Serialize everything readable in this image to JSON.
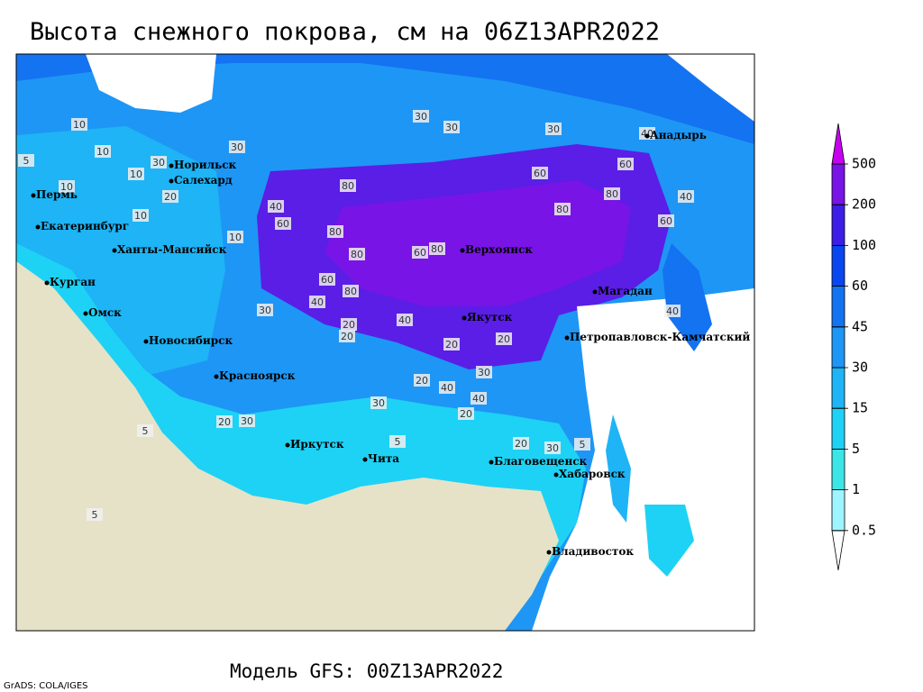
{
  "title": "Высота снежного покрова, см на 06Z13APR2022",
  "footer": "Модель GFS: 00Z13APR2022",
  "credit": "GrADS: COLA/IGES",
  "legend": {
    "levels": [
      0.5,
      1,
      5,
      15,
      30,
      45,
      60,
      100,
      200,
      500
    ],
    "colors": [
      "#ffffff",
      "#9ff5ff",
      "#3ce6e6",
      "#1ed2f5",
      "#1eb4f5",
      "#1e96f5",
      "#1473f0",
      "#0a46f0",
      "#3c1ee6",
      "#7814e6",
      "#c800f0"
    ]
  },
  "cities": [
    "Норильск",
    "Салехард",
    "Пермь",
    "Екатеринбург",
    "Ханты-Мансийск",
    "Курган",
    "Омск",
    "Новосибирск",
    "Красноярск",
    "Иркутск",
    "Чита",
    "Верхоянск",
    "Якутск",
    "Магадан",
    "Петропавловск-Камчатский",
    "Анадырь",
    "Благовещенск",
    "Хабаровск",
    "Владивосток"
  ],
  "contour_labels": [
    10,
    5,
    10,
    10,
    20,
    10,
    30,
    30,
    30,
    30,
    30,
    40,
    10,
    60,
    80,
    80,
    40,
    60,
    80,
    80,
    80,
    60,
    60,
    80,
    80,
    60,
    40,
    20,
    40,
    30,
    20,
    20,
    20,
    30,
    40,
    20,
    20,
    40,
    20,
    30,
    10,
    5,
    5,
    5,
    20,
    30,
    5,
    40,
    60,
    40,
    30
  ]
}
